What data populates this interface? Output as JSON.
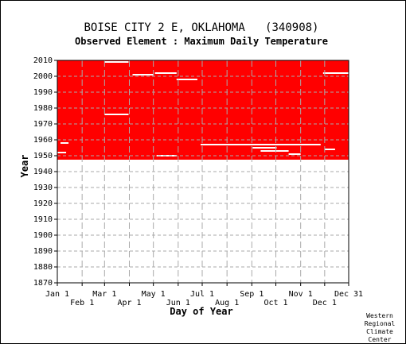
{
  "chart_data": {
    "type": "heatmap",
    "title": "BOISE CITY 2 E, OKLAHOMA   (340908)",
    "subtitle": "Observed Element : Maximum Daily Temperature",
    "xlabel": "Day of Year",
    "ylabel": "Year",
    "x_ticks_row1": [
      {
        "label": "Jan 1",
        "day": 1
      },
      {
        "label": "Mar 1",
        "day": 60
      },
      {
        "label": "May 1",
        "day": 121
      },
      {
        "label": "Jul 1",
        "day": 182
      },
      {
        "label": "Sep 1",
        "day": 244
      },
      {
        "label": "Nov 1",
        "day": 305
      },
      {
        "label": "Dec 31",
        "day": 365
      }
    ],
    "x_ticks_row2": [
      {
        "label": "Feb 1",
        "day": 32
      },
      {
        "label": "Apr 1",
        "day": 91
      },
      {
        "label": "Jun 1",
        "day": 152
      },
      {
        "label": "Aug 1",
        "day": 213
      },
      {
        "label": "Oct 1",
        "day": 274
      },
      {
        "label": "Dec 1",
        "day": 335
      }
    ],
    "xlim": [
      1,
      365
    ],
    "y_ticks": [
      1870,
      1880,
      1890,
      1900,
      1910,
      1920,
      1930,
      1940,
      1950,
      1960,
      1970,
      1980,
      1990,
      2000,
      2010
    ],
    "ylim": [
      1870,
      2010
    ],
    "grid": true,
    "data_color": "#ff0000",
    "record_period": {
      "start_year": 1947.5,
      "end_year": 2010
    },
    "gaps": [
      {
        "year": 2009,
        "day_start": 60,
        "day_end": 90
      },
      {
        "year": 2001,
        "day_start": 95,
        "day_end": 121
      },
      {
        "year": 2002,
        "day_start": 123,
        "day_end": 150
      },
      {
        "year": 1998,
        "day_start": 150,
        "day_end": 176
      },
      {
        "year": 2002,
        "day_start": 333,
        "day_end": 365
      },
      {
        "year": 1976,
        "day_start": 60,
        "day_end": 90
      },
      {
        "year": 1957,
        "day_start": 180,
        "day_end": 330
      },
      {
        "year": 1955,
        "day_start": 245,
        "day_end": 275
      },
      {
        "year": 1953,
        "day_start": 255,
        "day_end": 290
      },
      {
        "year": 1950,
        "day_start": 125,
        "day_end": 150
      },
      {
        "year": 1952,
        "day_start": 1,
        "day_end": 12
      },
      {
        "year": 1958,
        "day_start": 5,
        "day_end": 15
      },
      {
        "year": 1951,
        "day_start": 290,
        "day_end": 305
      },
      {
        "year": 1954,
        "day_start": 335,
        "day_end": 348
      }
    ],
    "credit": [
      "Western",
      "Regional",
      "Climate",
      "Center"
    ]
  }
}
